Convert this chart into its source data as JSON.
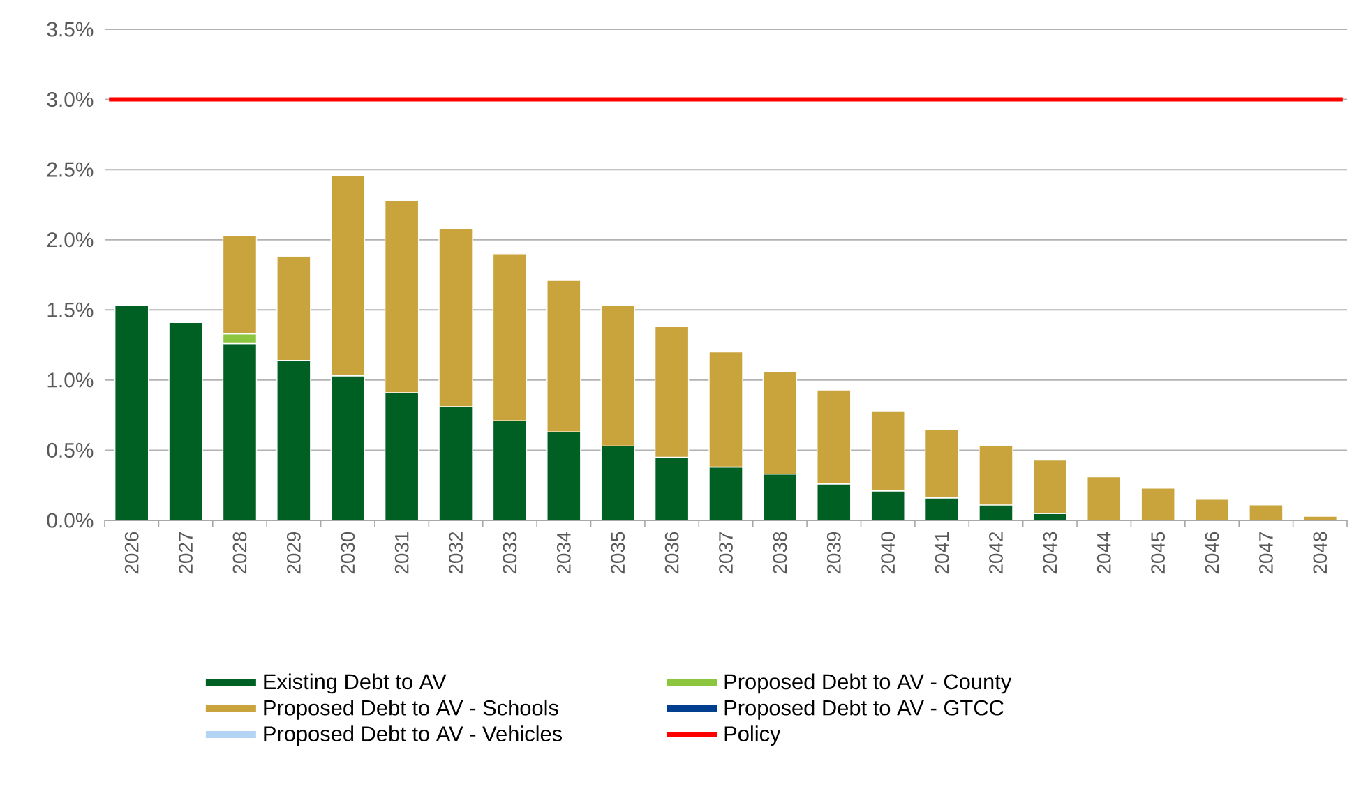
{
  "chart_data": {
    "type": "bar",
    "stacked": true,
    "categories": [
      "2026",
      "2027",
      "2028",
      "2029",
      "2030",
      "2031",
      "2032",
      "2033",
      "2034",
      "2035",
      "2036",
      "2037",
      "2038",
      "2039",
      "2040",
      "2041",
      "2042",
      "2043",
      "2044",
      "2045",
      "2046",
      "2047",
      "2048"
    ],
    "series": [
      {
        "name": "Existing Debt to AV",
        "color": "#006024",
        "values": [
          1.53,
          1.41,
          1.26,
          1.14,
          1.03,
          0.91,
          0.81,
          0.71,
          0.63,
          0.53,
          0.45,
          0.38,
          0.33,
          0.26,
          0.21,
          0.16,
          0.11,
          0.05,
          null,
          null,
          null,
          null,
          null
        ]
      },
      {
        "name": "Proposed Debt to AV - County",
        "color": "#8cc63f",
        "values": [
          null,
          null,
          0.07,
          null,
          null,
          null,
          null,
          null,
          null,
          null,
          null,
          null,
          null,
          null,
          null,
          null,
          null,
          null,
          null,
          null,
          null,
          null,
          null
        ]
      },
      {
        "name": "Proposed Debt to AV - Schools",
        "color": "#c9a43c",
        "values": [
          null,
          null,
          0.7,
          0.74,
          1.43,
          1.37,
          1.27,
          1.19,
          1.08,
          1.0,
          0.93,
          0.82,
          0.73,
          0.67,
          0.57,
          0.49,
          0.42,
          0.38,
          0.31,
          0.23,
          0.15,
          0.11,
          0.03
        ]
      },
      {
        "name": "Proposed Debt to AV - GTCC",
        "color": "#003f8f",
        "values": [
          null,
          null,
          null,
          null,
          null,
          null,
          null,
          null,
          null,
          null,
          null,
          null,
          null,
          null,
          null,
          null,
          null,
          null,
          null,
          null,
          null,
          null,
          null
        ]
      },
      {
        "name": "Proposed Debt to AV - Vehicles",
        "color": "#b4d4f4",
        "values": [
          null,
          null,
          null,
          null,
          null,
          null,
          null,
          null,
          null,
          null,
          null,
          null,
          null,
          null,
          null,
          null,
          null,
          null,
          null,
          null,
          null,
          null,
          null
        ]
      }
    ],
    "ref_lines": [
      {
        "axis": "y",
        "value": 3.0,
        "label": "Policy",
        "color": "#ff0000"
      }
    ],
    "ylim": [
      0,
      3.5
    ],
    "yticks": [
      {
        "value": 0,
        "label": "0.0%"
      },
      {
        "value": 0.5,
        "label": "0.5%"
      },
      {
        "value": 1.0,
        "label": "1.0%"
      },
      {
        "value": 1.5,
        "label": "1.5%"
      },
      {
        "value": 2.0,
        "label": "2.0%"
      },
      {
        "value": 2.5,
        "label": "2.5%"
      },
      {
        "value": 3.0,
        "label": "3.0%"
      },
      {
        "value": 3.5,
        "label": "3.5%"
      }
    ],
    "grid": "y",
    "legend": "bottom"
  }
}
